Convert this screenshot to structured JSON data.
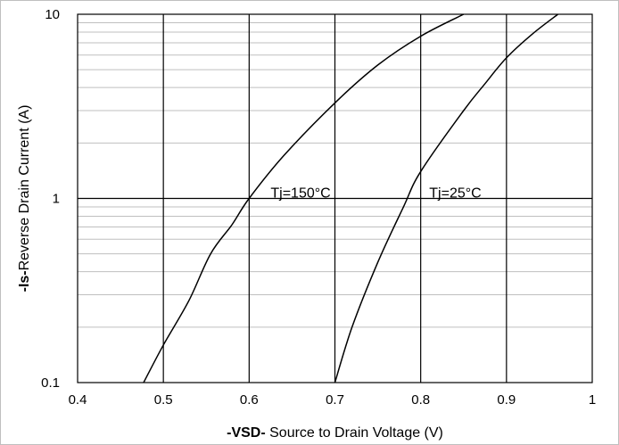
{
  "chart_data": {
    "type": "line",
    "title": "",
    "xlabel_bold": "-VSD-",
    "xlabel_rest": " Source to Drain Voltage (V)",
    "ylabel_bold": "-Is-",
    "ylabel_rest": "Reverse Drain Current (A)",
    "xlim": [
      0.4,
      1.0
    ],
    "ylim": [
      0.1,
      10
    ],
    "y_scale": "log",
    "grid": true,
    "x_ticks": [
      "0.4",
      "0.5",
      "0.6",
      "0.7",
      "0.8",
      "0.9",
      "1"
    ],
    "y_ticks": [
      "0.1",
      "1",
      "10"
    ],
    "series": [
      {
        "label": "Tj=150°C",
        "points": [
          [
            0.477,
            0.1
          ],
          [
            0.5,
            0.16
          ],
          [
            0.53,
            0.28
          ],
          [
            0.555,
            0.5
          ],
          [
            0.58,
            0.72
          ],
          [
            0.6,
            1.0
          ],
          [
            0.64,
            1.7
          ],
          [
            0.7,
            3.3
          ],
          [
            0.75,
            5.3
          ],
          [
            0.8,
            7.6
          ],
          [
            0.85,
            10
          ]
        ]
      },
      {
        "label": "Tj=25°C",
        "points": [
          [
            0.7,
            0.1
          ],
          [
            0.72,
            0.2
          ],
          [
            0.75,
            0.45
          ],
          [
            0.78,
            0.9
          ],
          [
            0.8,
            1.4
          ],
          [
            0.85,
            3.0
          ],
          [
            0.875,
            4.2
          ],
          [
            0.9,
            5.8
          ],
          [
            0.93,
            7.8
          ],
          [
            0.96,
            10
          ]
        ]
      }
    ],
    "label_positions": [
      [
        0.625,
        1.0
      ],
      [
        0.81,
        1.0
      ]
    ]
  }
}
